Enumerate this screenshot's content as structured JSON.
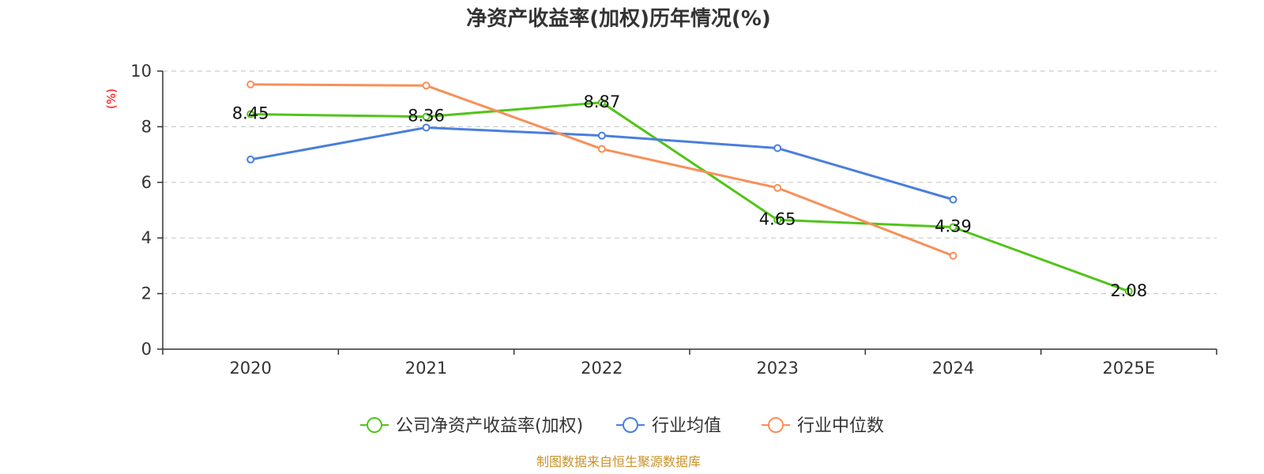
{
  "chart_data": {
    "type": "line",
    "title": "净资产收益率(加权)历年情况(%)",
    "ylabel": "(%)",
    "xlabel": "",
    "ylim": [
      0,
      10
    ],
    "yticks": [
      0,
      2,
      4,
      6,
      8,
      10
    ],
    "grid": true,
    "legend_position": "bottom",
    "categories": [
      "2020",
      "2021",
      "2022",
      "2023",
      "2024",
      "2025E"
    ],
    "series": [
      {
        "name": "公司净资产收益率(加权)",
        "color": "#52c41a",
        "values": [
          8.45,
          8.36,
          8.87,
          4.65,
          4.39,
          2.08
        ],
        "labels": [
          "8.45",
          "8.36",
          "8.87",
          "4.65",
          "4.39",
          "2.08"
        ]
      },
      {
        "name": "行业均值",
        "color": "#4a7fdc",
        "values": [
          6.82,
          7.97,
          7.68,
          7.23,
          5.38,
          null
        ]
      },
      {
        "name": "行业中位数",
        "color": "#f79059",
        "values": [
          9.52,
          9.48,
          7.2,
          5.8,
          3.36,
          null
        ]
      }
    ]
  },
  "colors": {
    "ylabel": "#ff0000",
    "source": "#c8922a",
    "grid": "#cccccc",
    "axis": "#333333"
  },
  "source_note": "制图数据来自恒生聚源数据库"
}
